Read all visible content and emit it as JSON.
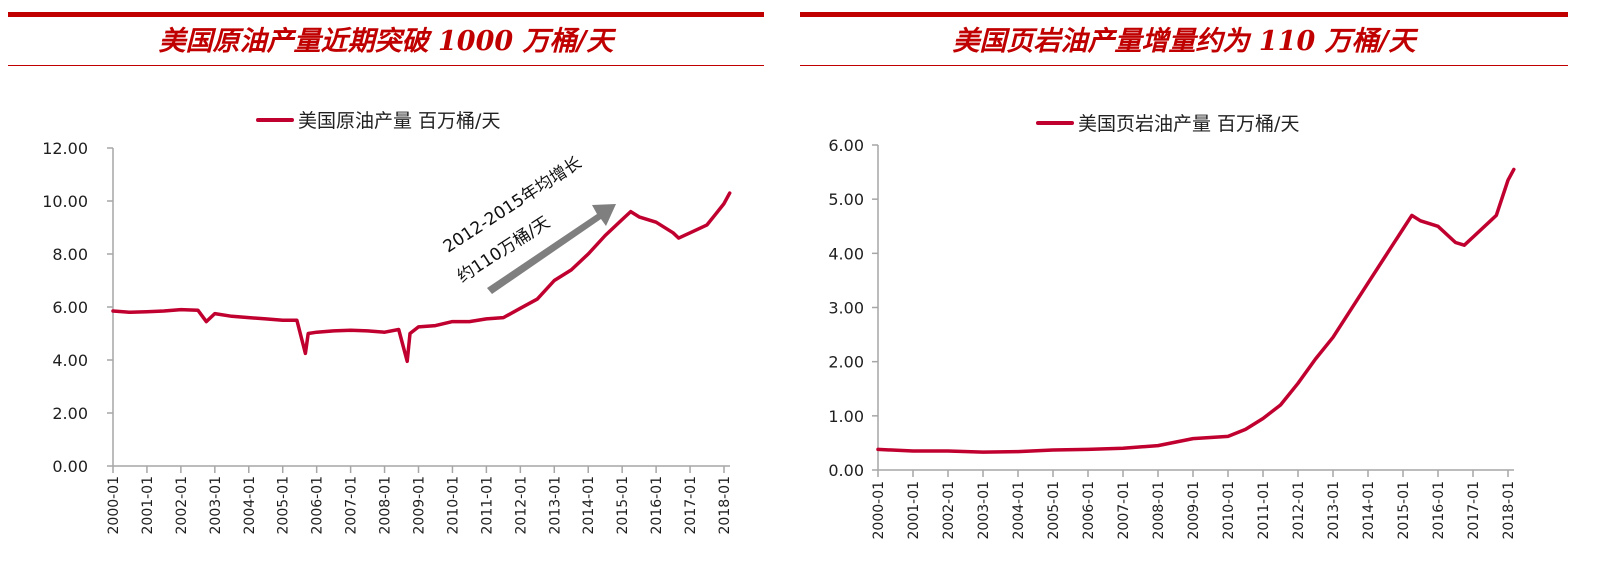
{
  "left": {
    "title": "美国原油产量近期突破 1000 万桶/天",
    "legend": "美国原油产量 百万桶/天",
    "annotation_line1": "2012-2015年均增长",
    "annotation_line2": "约110万桶/天",
    "yticks": [
      "12.00",
      "10.00",
      "8.00",
      "6.00",
      "4.00",
      "2.00",
      "0.00"
    ],
    "xticks": [
      "2000-01",
      "2001-01",
      "2002-01",
      "2003-01",
      "2004-01",
      "2005-01",
      "2006-01",
      "2007-01",
      "2008-01",
      "2009-01",
      "2010-01",
      "2011-01",
      "2012-01",
      "2013-01",
      "2014-01",
      "2015-01",
      "2016-01",
      "2017-01",
      "2018-01"
    ]
  },
  "right": {
    "title": "美国页岩油产量增量约为 110 万桶/天",
    "legend": "美国页岩油产量 百万桶/天",
    "yticks": [
      "6.00",
      "5.00",
      "4.00",
      "3.00",
      "2.00",
      "1.00",
      "0.00"
    ],
    "xticks": [
      "2000-01",
      "2001-01",
      "2002-01",
      "2003-01",
      "2004-01",
      "2005-01",
      "2006-01",
      "2007-01",
      "2008-01",
      "2009-01",
      "2010-01",
      "2011-01",
      "2012-01",
      "2013-01",
      "2014-01",
      "2015-01",
      "2016-01",
      "2017-01",
      "2018-01"
    ]
  },
  "colors": {
    "accent": "#c00000",
    "line": "#c0002f",
    "arrow": "#7f7f7f",
    "axis": "#a6a6a6"
  },
  "chart_data": [
    {
      "type": "line",
      "title": "美国原油产量近期突破 1000 万桶/天",
      "legend": [
        "美国原油产量 百万桶/天"
      ],
      "xlabel": "",
      "ylabel": "百万桶/天",
      "ylim": [
        0,
        12
      ],
      "grid": false,
      "legend_position": "top",
      "annotations": [
        "2012-2015年均增长 约110万桶/天"
      ],
      "x": [
        "2000-01",
        "2000-07",
        "2001-01",
        "2001-07",
        "2002-01",
        "2002-07",
        "2002-10",
        "2003-01",
        "2003-07",
        "2004-01",
        "2004-07",
        "2005-01",
        "2005-06",
        "2005-09",
        "2005-10",
        "2006-01",
        "2006-07",
        "2007-01",
        "2007-07",
        "2008-01",
        "2008-06",
        "2008-09",
        "2008-10",
        "2009-01",
        "2009-07",
        "2010-01",
        "2010-07",
        "2011-01",
        "2011-07",
        "2012-01",
        "2012-07",
        "2013-01",
        "2013-07",
        "2014-01",
        "2014-07",
        "2015-01",
        "2015-04",
        "2015-07",
        "2016-01",
        "2016-07",
        "2016-09",
        "2017-01",
        "2017-07",
        "2017-10",
        "2018-01",
        "2018-03"
      ],
      "series": [
        {
          "name": "美国原油产量 百万桶/天",
          "values": [
            5.85,
            5.8,
            5.82,
            5.85,
            5.9,
            5.88,
            5.45,
            5.75,
            5.65,
            5.6,
            5.55,
            5.5,
            5.5,
            4.25,
            5.0,
            5.05,
            5.1,
            5.12,
            5.1,
            5.05,
            5.15,
            3.95,
            5.0,
            5.25,
            5.3,
            5.45,
            5.45,
            5.55,
            5.6,
            5.95,
            6.3,
            7.0,
            7.4,
            8.0,
            8.7,
            9.3,
            9.6,
            9.4,
            9.2,
            8.8,
            8.6,
            8.8,
            9.1,
            9.5,
            9.9,
            10.3
          ]
        }
      ]
    },
    {
      "type": "line",
      "title": "美国页岩油产量增量约为 110 万桶/天",
      "legend": [
        "美国页岩油产量 百万桶/天"
      ],
      "xlabel": "",
      "ylabel": "百万桶/天",
      "ylim": [
        0,
        6
      ],
      "grid": false,
      "legend_position": "top",
      "x": [
        "2000-01",
        "2001-01",
        "2002-01",
        "2003-01",
        "2004-01",
        "2005-01",
        "2006-01",
        "2007-01",
        "2008-01",
        "2009-01",
        "2010-01",
        "2010-07",
        "2011-01",
        "2011-07",
        "2012-01",
        "2012-07",
        "2013-01",
        "2013-07",
        "2014-01",
        "2014-07",
        "2015-01",
        "2015-04",
        "2015-07",
        "2016-01",
        "2016-07",
        "2016-10",
        "2017-01",
        "2017-07",
        "2017-09",
        "2018-01",
        "2018-03"
      ],
      "series": [
        {
          "name": "美国页岩油产量 百万桶/天",
          "values": [
            0.38,
            0.35,
            0.35,
            0.33,
            0.34,
            0.37,
            0.38,
            0.4,
            0.45,
            0.58,
            0.62,
            0.75,
            0.95,
            1.2,
            1.6,
            2.05,
            2.45,
            2.95,
            3.45,
            3.95,
            4.45,
            4.7,
            4.6,
            4.5,
            4.2,
            4.15,
            4.3,
            4.6,
            4.7,
            5.35,
            5.55
          ]
        }
      ]
    }
  ]
}
